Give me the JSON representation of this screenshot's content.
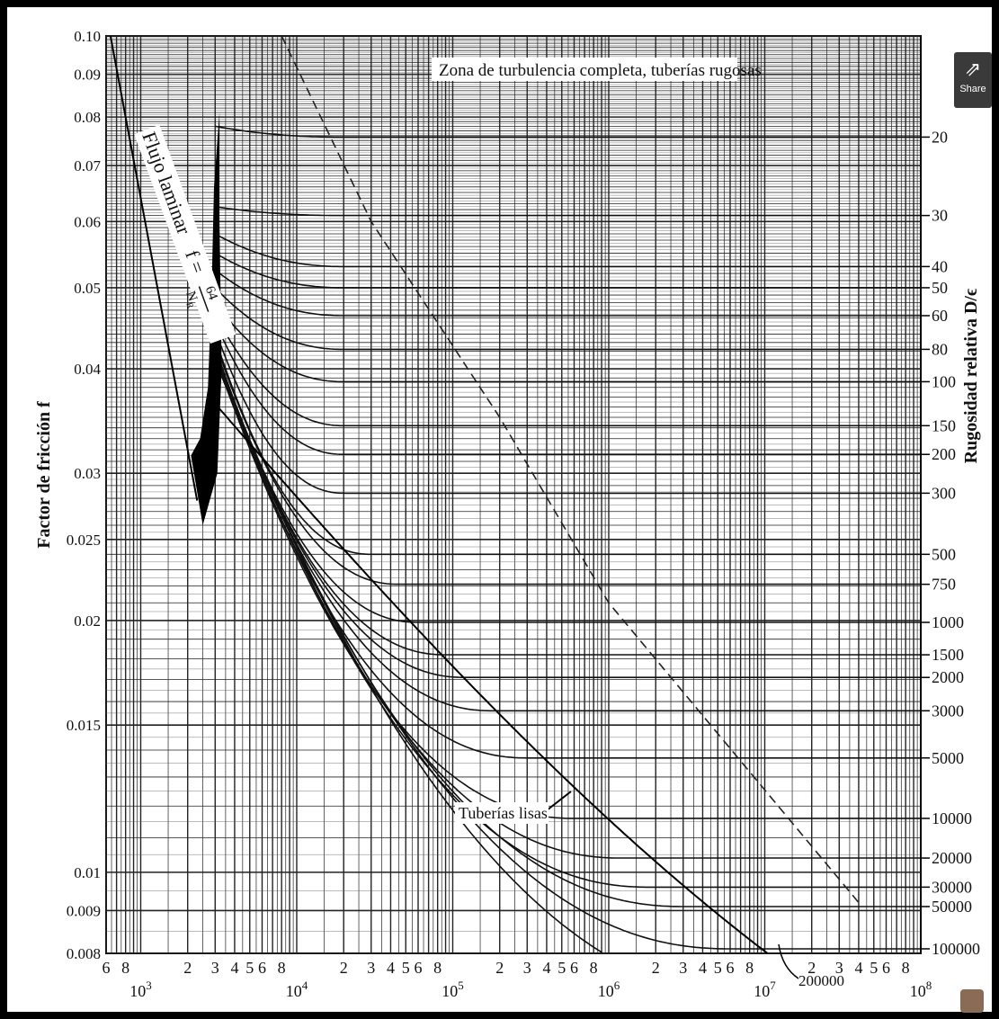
{
  "share_button": {
    "label": "Share",
    "icon": "share-icon"
  },
  "chart_data": {
    "type": "line",
    "title": "",
    "xlabel": "",
    "ylabel": "Factor de fricción f",
    "y2label": "Rugosidad relativa D/ϵ",
    "x_scale": "log",
    "y_scale": "log",
    "xlim": [
      600,
      100000000
    ],
    "ylim": [
      0.008,
      0.1
    ],
    "grid": true,
    "y_ticks": [
      {
        "value": 0.1,
        "label": "0.10"
      },
      {
        "value": 0.09,
        "label": "0.09"
      },
      {
        "value": 0.08,
        "label": "0.08"
      },
      {
        "value": 0.07,
        "label": "0.07"
      },
      {
        "value": 0.06,
        "label": "0.06"
      },
      {
        "value": 0.05,
        "label": "0.05"
      },
      {
        "value": 0.04,
        "label": "0.04"
      },
      {
        "value": 0.03,
        "label": "0.03"
      },
      {
        "value": 0.025,
        "label": "0.025"
      },
      {
        "value": 0.02,
        "label": "0.02"
      },
      {
        "value": 0.015,
        "label": "0.015"
      },
      {
        "value": 0.01,
        "label": "0.01"
      },
      {
        "value": 0.009,
        "label": "0.009"
      },
      {
        "value": 0.008,
        "label": "0.008"
      }
    ],
    "x_decade_labels": [
      {
        "base": "10",
        "exp": "3",
        "value": 1000
      },
      {
        "base": "10",
        "exp": "4",
        "value": 10000
      },
      {
        "base": "10",
        "exp": "5",
        "value": 100000
      },
      {
        "base": "10",
        "exp": "6",
        "value": 1000000
      },
      {
        "base": "10",
        "exp": "7",
        "value": 10000000
      },
      {
        "base": "10",
        "exp": "8",
        "value": 100000000
      }
    ],
    "x_minor_labels": [
      {
        "value": 600,
        "label": "6"
      },
      {
        "value": 800,
        "label": "8"
      },
      {
        "value": 2000,
        "label": "2"
      },
      {
        "value": 3000,
        "label": "3"
      },
      {
        "value": 4000,
        "label": "4"
      },
      {
        "value": 5000,
        "label": "5"
      },
      {
        "value": 6000,
        "label": "6"
      },
      {
        "value": 8000,
        "label": "8"
      },
      {
        "value": 20000,
        "label": "2"
      },
      {
        "value": 30000,
        "label": "3"
      },
      {
        "value": 40000,
        "label": "4"
      },
      {
        "value": 50000,
        "label": "5"
      },
      {
        "value": 60000,
        "label": "6"
      },
      {
        "value": 80000,
        "label": "8"
      },
      {
        "value": 200000,
        "label": "2"
      },
      {
        "value": 300000,
        "label": "3"
      },
      {
        "value": 400000,
        "label": "4"
      },
      {
        "value": 500000,
        "label": "5"
      },
      {
        "value": 600000,
        "label": "6"
      },
      {
        "value": 800000,
        "label": "8"
      },
      {
        "value": 2000000,
        "label": "2"
      },
      {
        "value": 3000000,
        "label": "3"
      },
      {
        "value": 4000000,
        "label": "4"
      },
      {
        "value": 5000000,
        "label": "5"
      },
      {
        "value": 6000000,
        "label": "6"
      },
      {
        "value": 8000000,
        "label": "8"
      },
      {
        "value": 20000000,
        "label": "2"
      },
      {
        "value": 30000000,
        "label": "3"
      },
      {
        "value": 40000000,
        "label": "4"
      },
      {
        "value": 50000000,
        "label": "5"
      },
      {
        "value": 60000000,
        "label": "6"
      },
      {
        "value": 80000000,
        "label": "8"
      }
    ],
    "right_labels": [
      {
        "label": "20",
        "f": 0.0757
      },
      {
        "label": "30",
        "f": 0.061
      },
      {
        "label": "40",
        "f": 0.053
      },
      {
        "label": "50",
        "f": 0.05
      },
      {
        "label": "60",
        "f": 0.0463
      },
      {
        "label": "80",
        "f": 0.0422
      },
      {
        "label": "100",
        "f": 0.0386
      },
      {
        "label": "150",
        "f": 0.0342
      },
      {
        "label": "200",
        "f": 0.0316
      },
      {
        "label": "300",
        "f": 0.0284
      },
      {
        "label": "500",
        "f": 0.024
      },
      {
        "label": "750",
        "f": 0.0221
      },
      {
        "label": "1000",
        "f": 0.0199
      },
      {
        "label": "1500",
        "f": 0.0182
      },
      {
        "label": "2000",
        "f": 0.0171
      },
      {
        "label": "3000",
        "f": 0.0156
      },
      {
        "label": "5000",
        "f": 0.0137
      },
      {
        "label": "10000",
        "f": 0.0116
      },
      {
        "label": "20000",
        "f": 0.0104
      },
      {
        "label": "30000",
        "f": 0.0096
      },
      {
        "label": "50000",
        "f": 0.0091
      },
      {
        "label": "100000",
        "f": 0.0081
      }
    ],
    "series": [
      {
        "rel_roughness": 20,
        "start_re": 3000,
        "f_start": 0.078,
        "f_end": 0.0757
      },
      {
        "rel_roughness": 30,
        "start_re": 3000,
        "f_start": 0.0625,
        "f_end": 0.061
      },
      {
        "rel_roughness": 40,
        "start_re": 3000,
        "f_start": 0.058,
        "f_end": 0.053
      },
      {
        "rel_roughness": 50,
        "start_re": 3000,
        "f_start": 0.055,
        "f_end": 0.05
      },
      {
        "rel_roughness": 60,
        "start_re": 3000,
        "f_start": 0.0525,
        "f_end": 0.0463
      },
      {
        "rel_roughness": 80,
        "start_re": 3000,
        "f_start": 0.05,
        "f_end": 0.0422
      },
      {
        "rel_roughness": 100,
        "start_re": 3000,
        "f_start": 0.048,
        "f_end": 0.0386
      },
      {
        "rel_roughness": 150,
        "start_re": 3000,
        "f_start": 0.0465,
        "f_end": 0.0342
      },
      {
        "rel_roughness": 200,
        "start_re": 3000,
        "f_start": 0.0455,
        "f_end": 0.0316
      },
      {
        "rel_roughness": 300,
        "start_re": 3000,
        "f_start": 0.0445,
        "f_end": 0.0284
      },
      {
        "rel_roughness": 500,
        "start_re": 3000,
        "f_start": 0.0435,
        "f_end": 0.024
      },
      {
        "rel_roughness": 750,
        "start_re": 3000,
        "f_start": 0.043,
        "f_end": 0.0221
      },
      {
        "rel_roughness": 1000,
        "start_re": 3000,
        "f_start": 0.0425,
        "f_end": 0.0199
      },
      {
        "rel_roughness": 1500,
        "start_re": 3000,
        "f_start": 0.0422,
        "f_end": 0.0182
      },
      {
        "rel_roughness": 2000,
        "start_re": 3000,
        "f_start": 0.042,
        "f_end": 0.0171
      },
      {
        "rel_roughness": 3000,
        "start_re": 3000,
        "f_start": 0.0418,
        "f_end": 0.0156
      },
      {
        "rel_roughness": 5000,
        "start_re": 3000,
        "f_start": 0.0416,
        "f_end": 0.0137
      },
      {
        "rel_roughness": 10000,
        "start_re": 3000,
        "f_start": 0.0414,
        "f_end": 0.0116
      },
      {
        "rel_roughness": 20000,
        "start_re": 3000,
        "f_start": 0.0413,
        "f_end": 0.0104
      },
      {
        "rel_roughness": 30000,
        "start_re": 3000,
        "f_start": 0.0412,
        "f_end": 0.0096
      },
      {
        "rel_roughness": 50000,
        "start_re": 3000,
        "f_start": 0.0411,
        "f_end": 0.0091
      },
      {
        "rel_roughness": 100000,
        "start_re": 3000,
        "f_start": 0.041,
        "f_end": 0.0081
      },
      {
        "rel_roughness": 200000,
        "start_re": 3000,
        "f_start": 0.041,
        "f_end": 0.007
      }
    ],
    "laminar": {
      "label": "Flujo laminar",
      "formula_lhs": "f =",
      "formula_num": "64",
      "formula_den": "N",
      "formula_den_sub": "R"
    },
    "smooth_label": "Tuberías lisas",
    "turbulence_label": "Zona de turbulencia completa, tuberías rugosas",
    "annotation_200000": "200000"
  }
}
